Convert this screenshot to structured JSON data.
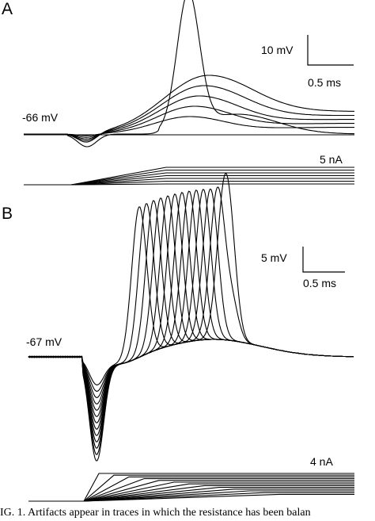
{
  "panels": {
    "A": {
      "letter": "A",
      "resting_label": "-66 mV",
      "scale_voltage": "10 mV",
      "scale_time": "0.5 ms",
      "scale_current": "5 nA"
    },
    "B": {
      "letter": "B",
      "resting_label": "-67 mV",
      "scale_voltage": "5 mV",
      "scale_time": "0.5 ms",
      "scale_current": "4 nA"
    }
  },
  "caption": "IG. 1.    Artifacts appear in traces in which the resistance has been balan"
}
